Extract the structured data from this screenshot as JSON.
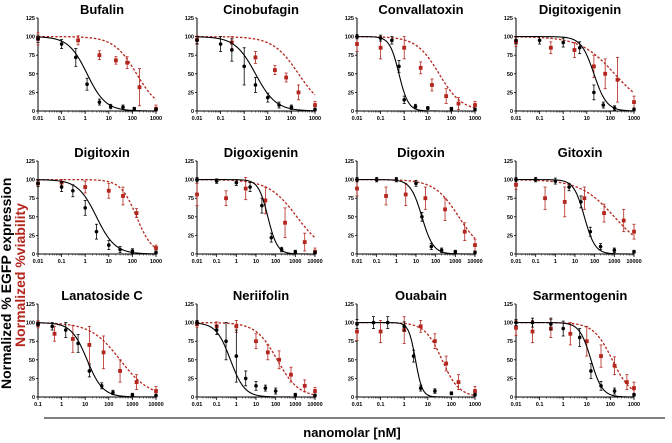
{
  "chart_data": {
    "type": "scatter",
    "y_axis_title": "Normalized % EGFP expression",
    "y_axis_title_2": "Normalized %viability",
    "x_axis_title": "nanomolar [nM]",
    "y_ticks": [
      "0",
      "25",
      "50",
      "75",
      "100",
      "125"
    ],
    "ylim": [
      0,
      125
    ],
    "series_colors": {
      "egfp": "#000000",
      "viability": "#b3261e"
    },
    "series_names": {
      "egfp": "EGFP expression (fit: solid)",
      "viability": "viability (fit: dashed)"
    },
    "panels": [
      {
        "title": "Bufalin",
        "x_ticks": [
          "0.01",
          "0.1",
          "1",
          "10",
          "100",
          "1000"
        ],
        "xlim": [
          0.01,
          1000
        ],
        "egfp": {
          "ic50": 1.2,
          "hill": 1.1,
          "x": [
            0.01,
            0.1,
            0.4,
            1.2,
            4,
            12,
            40,
            120,
            1000
          ],
          "y": [
            97,
            90,
            72,
            36,
            12,
            6,
            5,
            3,
            2
          ],
          "err": [
            5,
            6,
            12,
            8,
            4,
            3,
            3,
            2,
            2
          ]
        },
        "viability": {
          "ic50": 150,
          "hill": 0.9,
          "x": [
            0.01,
            0.5,
            4,
            20,
            60,
            200,
            1000
          ],
          "y": [
            97,
            95,
            75,
            68,
            65,
            32,
            3
          ],
          "err": [
            8,
            6,
            6,
            5,
            8,
            25,
            5
          ]
        }
      },
      {
        "title": "Cinobufagin",
        "x_ticks": [
          "0.01",
          "0.1",
          "1",
          "10",
          "100",
          "1000"
        ],
        "xlim": [
          0.01,
          1000
        ],
        "egfp": {
          "ic50": 3,
          "hill": 1.0,
          "x": [
            0.01,
            0.1,
            0.3,
            1,
            3,
            10,
            30,
            100,
            1000
          ],
          "y": [
            95,
            90,
            82,
            60,
            35,
            18,
            8,
            5,
            2
          ],
          "err": [
            5,
            10,
            15,
            25,
            10,
            6,
            4,
            3,
            2
          ]
        },
        "viability": {
          "ic50": 200,
          "hill": 0.8,
          "x": [
            0.01,
            0.3,
            3,
            20,
            60,
            200,
            1000
          ],
          "y": [
            96,
            92,
            72,
            55,
            45,
            25,
            8
          ],
          "err": [
            5,
            8,
            8,
            6,
            6,
            10,
            5
          ]
        }
      },
      {
        "title": "Convallatoxin",
        "x_ticks": [
          "0.01",
          "0.1",
          "1",
          "10",
          "100",
          "1000"
        ],
        "xlim": [
          0.01,
          1000
        ],
        "egfp": {
          "ic50": 0.6,
          "hill": 2.2,
          "x": [
            0.01,
            0.1,
            0.3,
            0.6,
            1,
            3,
            10,
            100,
            1000
          ],
          "y": [
            100,
            98,
            95,
            60,
            15,
            6,
            4,
            3,
            2
          ],
          "err": [
            3,
            4,
            5,
            8,
            5,
            3,
            2,
            2,
            2
          ]
        },
        "viability": {
          "ic50": 30,
          "hill": 0.9,
          "x": [
            0.01,
            0.1,
            1,
            5,
            15,
            60,
            200,
            1000
          ],
          "y": [
            90,
            85,
            85,
            58,
            35,
            20,
            10,
            8
          ],
          "err": [
            10,
            15,
            15,
            8,
            8,
            10,
            8,
            5
          ]
        }
      },
      {
        "title": "Digitoxigenin",
        "x_ticks": [
          "0.01",
          "0.1",
          "1",
          "10",
          "100",
          "1000"
        ],
        "xlim": [
          0.01,
          1000
        ],
        "egfp": {
          "ic50": 20,
          "hill": 1.6,
          "x": [
            0.01,
            0.1,
            1,
            5,
            20,
            50,
            150,
            1000
          ],
          "y": [
            95,
            95,
            92,
            85,
            25,
            8,
            4,
            2
          ],
          "err": [
            5,
            5,
            6,
            8,
            10,
            4,
            3,
            2
          ]
        },
        "viability": {
          "ic50": 150,
          "hill": 0.6,
          "x": [
            0.01,
            0.3,
            3,
            20,
            60,
            200,
            1000
          ],
          "y": [
            93,
            85,
            82,
            60,
            50,
            42,
            12
          ],
          "err": [
            6,
            8,
            10,
            15,
            20,
            30,
            8
          ]
        }
      },
      {
        "title": "Digitoxin",
        "x_ticks": [
          "0.01",
          "0.1",
          "1",
          "10",
          "100",
          "1000"
        ],
        "xlim": [
          0.01,
          1000
        ],
        "egfp": {
          "ic50": 3,
          "hill": 1.1,
          "x": [
            0.01,
            0.1,
            0.3,
            1,
            3,
            10,
            30,
            100,
            1000
          ],
          "y": [
            95,
            90,
            85,
            62,
            30,
            12,
            6,
            4,
            2
          ],
          "err": [
            4,
            6,
            8,
            10,
            10,
            6,
            4,
            3,
            2
          ]
        },
        "viability": {
          "ic50": 150,
          "hill": 1.3,
          "x": [
            0.01,
            0.1,
            1,
            10,
            40,
            150,
            1000
          ],
          "y": [
            95,
            96,
            90,
            85,
            78,
            55,
            8
          ],
          "err": [
            4,
            4,
            8,
            10,
            12,
            6,
            4
          ]
        }
      },
      {
        "title": "Digoxigenin",
        "x_ticks": [
          "0.01",
          "0.1",
          "1",
          "10",
          "100",
          "1000",
          "10000"
        ],
        "xlim": [
          0.01,
          10000
        ],
        "egfp": {
          "ic50": 40,
          "hill": 1.8,
          "x": [
            0.01,
            0.1,
            1,
            5,
            20,
            60,
            200,
            1000,
            10000
          ],
          "y": [
            100,
            98,
            96,
            90,
            65,
            22,
            6,
            3,
            2
          ],
          "err": [
            3,
            3,
            4,
            6,
            10,
            6,
            3,
            2,
            2
          ]
        },
        "viability": {
          "ic50": 1200,
          "hill": 0.6,
          "x": [
            0.01,
            0.3,
            3,
            30,
            300,
            3000,
            10000
          ],
          "y": [
            80,
            75,
            88,
            72,
            42,
            16,
            3
          ],
          "err": [
            15,
            10,
            15,
            18,
            20,
            12,
            5
          ]
        }
      },
      {
        "title": "Digoxin",
        "x_ticks": [
          "0.01",
          "0.1",
          "1",
          "10",
          "100",
          "1000",
          "10000"
        ],
        "xlim": [
          0.01,
          10000
        ],
        "egfp": {
          "ic50": 20,
          "hill": 1.5,
          "x": [
            0.01,
            0.1,
            1,
            10,
            20,
            60,
            200,
            1000,
            10000
          ],
          "y": [
            100,
            100,
            100,
            95,
            50,
            10,
            5,
            3,
            2
          ],
          "err": [
            3,
            3,
            3,
            4,
            6,
            4,
            3,
            2,
            2
          ]
        },
        "viability": {
          "ic50": 1500,
          "hill": 0.7,
          "x": [
            0.01,
            0.3,
            3,
            30,
            300,
            3000,
            10000
          ],
          "y": [
            88,
            78,
            80,
            75,
            60,
            30,
            12
          ],
          "err": [
            10,
            12,
            15,
            15,
            15,
            12,
            8
          ]
        }
      },
      {
        "title": "Gitoxin",
        "x_ticks": [
          "0.01",
          "0.1",
          "1",
          "10",
          "100",
          "1000",
          "10000"
        ],
        "xlim": [
          0.01,
          10000
        ],
        "egfp": {
          "ic50": 30,
          "hill": 1.6,
          "x": [
            0.01,
            0.1,
            1,
            5,
            20,
            60,
            200,
            1000,
            10000
          ],
          "y": [
            100,
            100,
            98,
            90,
            70,
            30,
            10,
            5,
            3
          ],
          "err": [
            3,
            3,
            4,
            5,
            8,
            6,
            4,
            3,
            2
          ]
        },
        "viability": {
          "ic50": 1000,
          "hill": 0.5,
          "x": [
            0.01,
            0.3,
            3,
            30,
            300,
            3000,
            10000
          ],
          "y": [
            93,
            75,
            70,
            75,
            55,
            45,
            30
          ],
          "err": [
            6,
            15,
            20,
            15,
            12,
            15,
            10
          ]
        }
      },
      {
        "title": "Lanatoside C",
        "x_ticks": [
          "0.1",
          "1",
          "10",
          "100",
          "1000",
          "10000"
        ],
        "xlim": [
          0.1,
          10000
        ],
        "egfp": {
          "ic50": 12,
          "hill": 1.3,
          "x": [
            0.1,
            0.4,
            1.5,
            5,
            15,
            50,
            150,
            1000,
            10000
          ],
          "y": [
            98,
            95,
            90,
            72,
            35,
            15,
            6,
            3,
            2
          ],
          "err": [
            3,
            5,
            10,
            12,
            8,
            4,
            3,
            2,
            2
          ]
        },
        "viability": {
          "ic50": 300,
          "hill": 0.7,
          "x": [
            0.1,
            0.5,
            3,
            15,
            60,
            300,
            1500,
            10000
          ],
          "y": [
            98,
            85,
            78,
            70,
            60,
            35,
            20,
            8
          ],
          "err": [
            5,
            10,
            18,
            25,
            22,
            15,
            10,
            6
          ]
        }
      },
      {
        "title": "Neriifolin",
        "x_ticks": [
          "0.01",
          "0.1",
          "1",
          "10",
          "100",
          "1000",
          "10000"
        ],
        "xlim": [
          0.01,
          10000
        ],
        "egfp": {
          "ic50": 0.5,
          "hill": 1.2,
          "x": [
            0.01,
            0.1,
            0.3,
            1,
            3,
            10,
            30,
            100,
            1000,
            10000
          ],
          "y": [
            100,
            90,
            75,
            55,
            25,
            15,
            12,
            8,
            3,
            2
          ],
          "err": [
            3,
            6,
            25,
            35,
            10,
            6,
            4,
            4,
            2,
            2
          ]
        },
        "viability": {
          "ic50": 120,
          "hill": 0.8,
          "x": [
            0.01,
            0.1,
            1,
            10,
            40,
            150,
            600,
            3000,
            10000
          ],
          "y": [
            98,
            95,
            95,
            75,
            60,
            50,
            30,
            15,
            8
          ],
          "err": [
            4,
            6,
            8,
            10,
            10,
            12,
            10,
            8,
            5
          ]
        }
      },
      {
        "title": "Ouabain",
        "x_ticks": [
          "0.01",
          "0.1",
          "1",
          "10",
          "100",
          "1000"
        ],
        "xlim": [
          0.01,
          1000
        ],
        "egfp": {
          "ic50": 3,
          "hill": 3.0,
          "x": [
            0.01,
            0.05,
            0.2,
            1,
            2.5,
            5,
            20,
            100,
            1000
          ],
          "y": [
            98,
            100,
            100,
            95,
            55,
            12,
            8,
            5,
            3
          ],
          "err": [
            6,
            8,
            8,
            6,
            8,
            4,
            3,
            2,
            2
          ]
        },
        "viability": {
          "ic50": 40,
          "hill": 1.2,
          "x": [
            0.01,
            0.1,
            1,
            5,
            20,
            60,
            200,
            1000
          ],
          "y": [
            88,
            88,
            90,
            95,
            75,
            45,
            20,
            8
          ],
          "err": [
            12,
            15,
            18,
            8,
            10,
            10,
            10,
            6
          ]
        }
      },
      {
        "title": "Sarmentogenin",
        "x_ticks": [
          "0.01",
          "0.1",
          "1",
          "10",
          "100",
          "1000"
        ],
        "xlim": [
          0.01,
          1000
        ],
        "egfp": {
          "ic50": 15,
          "hill": 1.8,
          "x": [
            0.01,
            0.05,
            0.3,
            1,
            5,
            15,
            40,
            150,
            1000
          ],
          "y": [
            100,
            100,
            98,
            92,
            80,
            35,
            15,
            8,
            3
          ],
          "err": [
            4,
            6,
            8,
            10,
            12,
            10,
            6,
            4,
            2
          ]
        },
        "viability": {
          "ic50": 120,
          "hill": 1.1,
          "x": [
            0.01,
            0.05,
            0.3,
            2,
            10,
            40,
            150,
            500,
            1000
          ],
          "y": [
            93,
            88,
            92,
            85,
            75,
            55,
            42,
            20,
            12
          ],
          "err": [
            10,
            15,
            12,
            15,
            20,
            15,
            12,
            10,
            8
          ]
        }
      }
    ]
  }
}
